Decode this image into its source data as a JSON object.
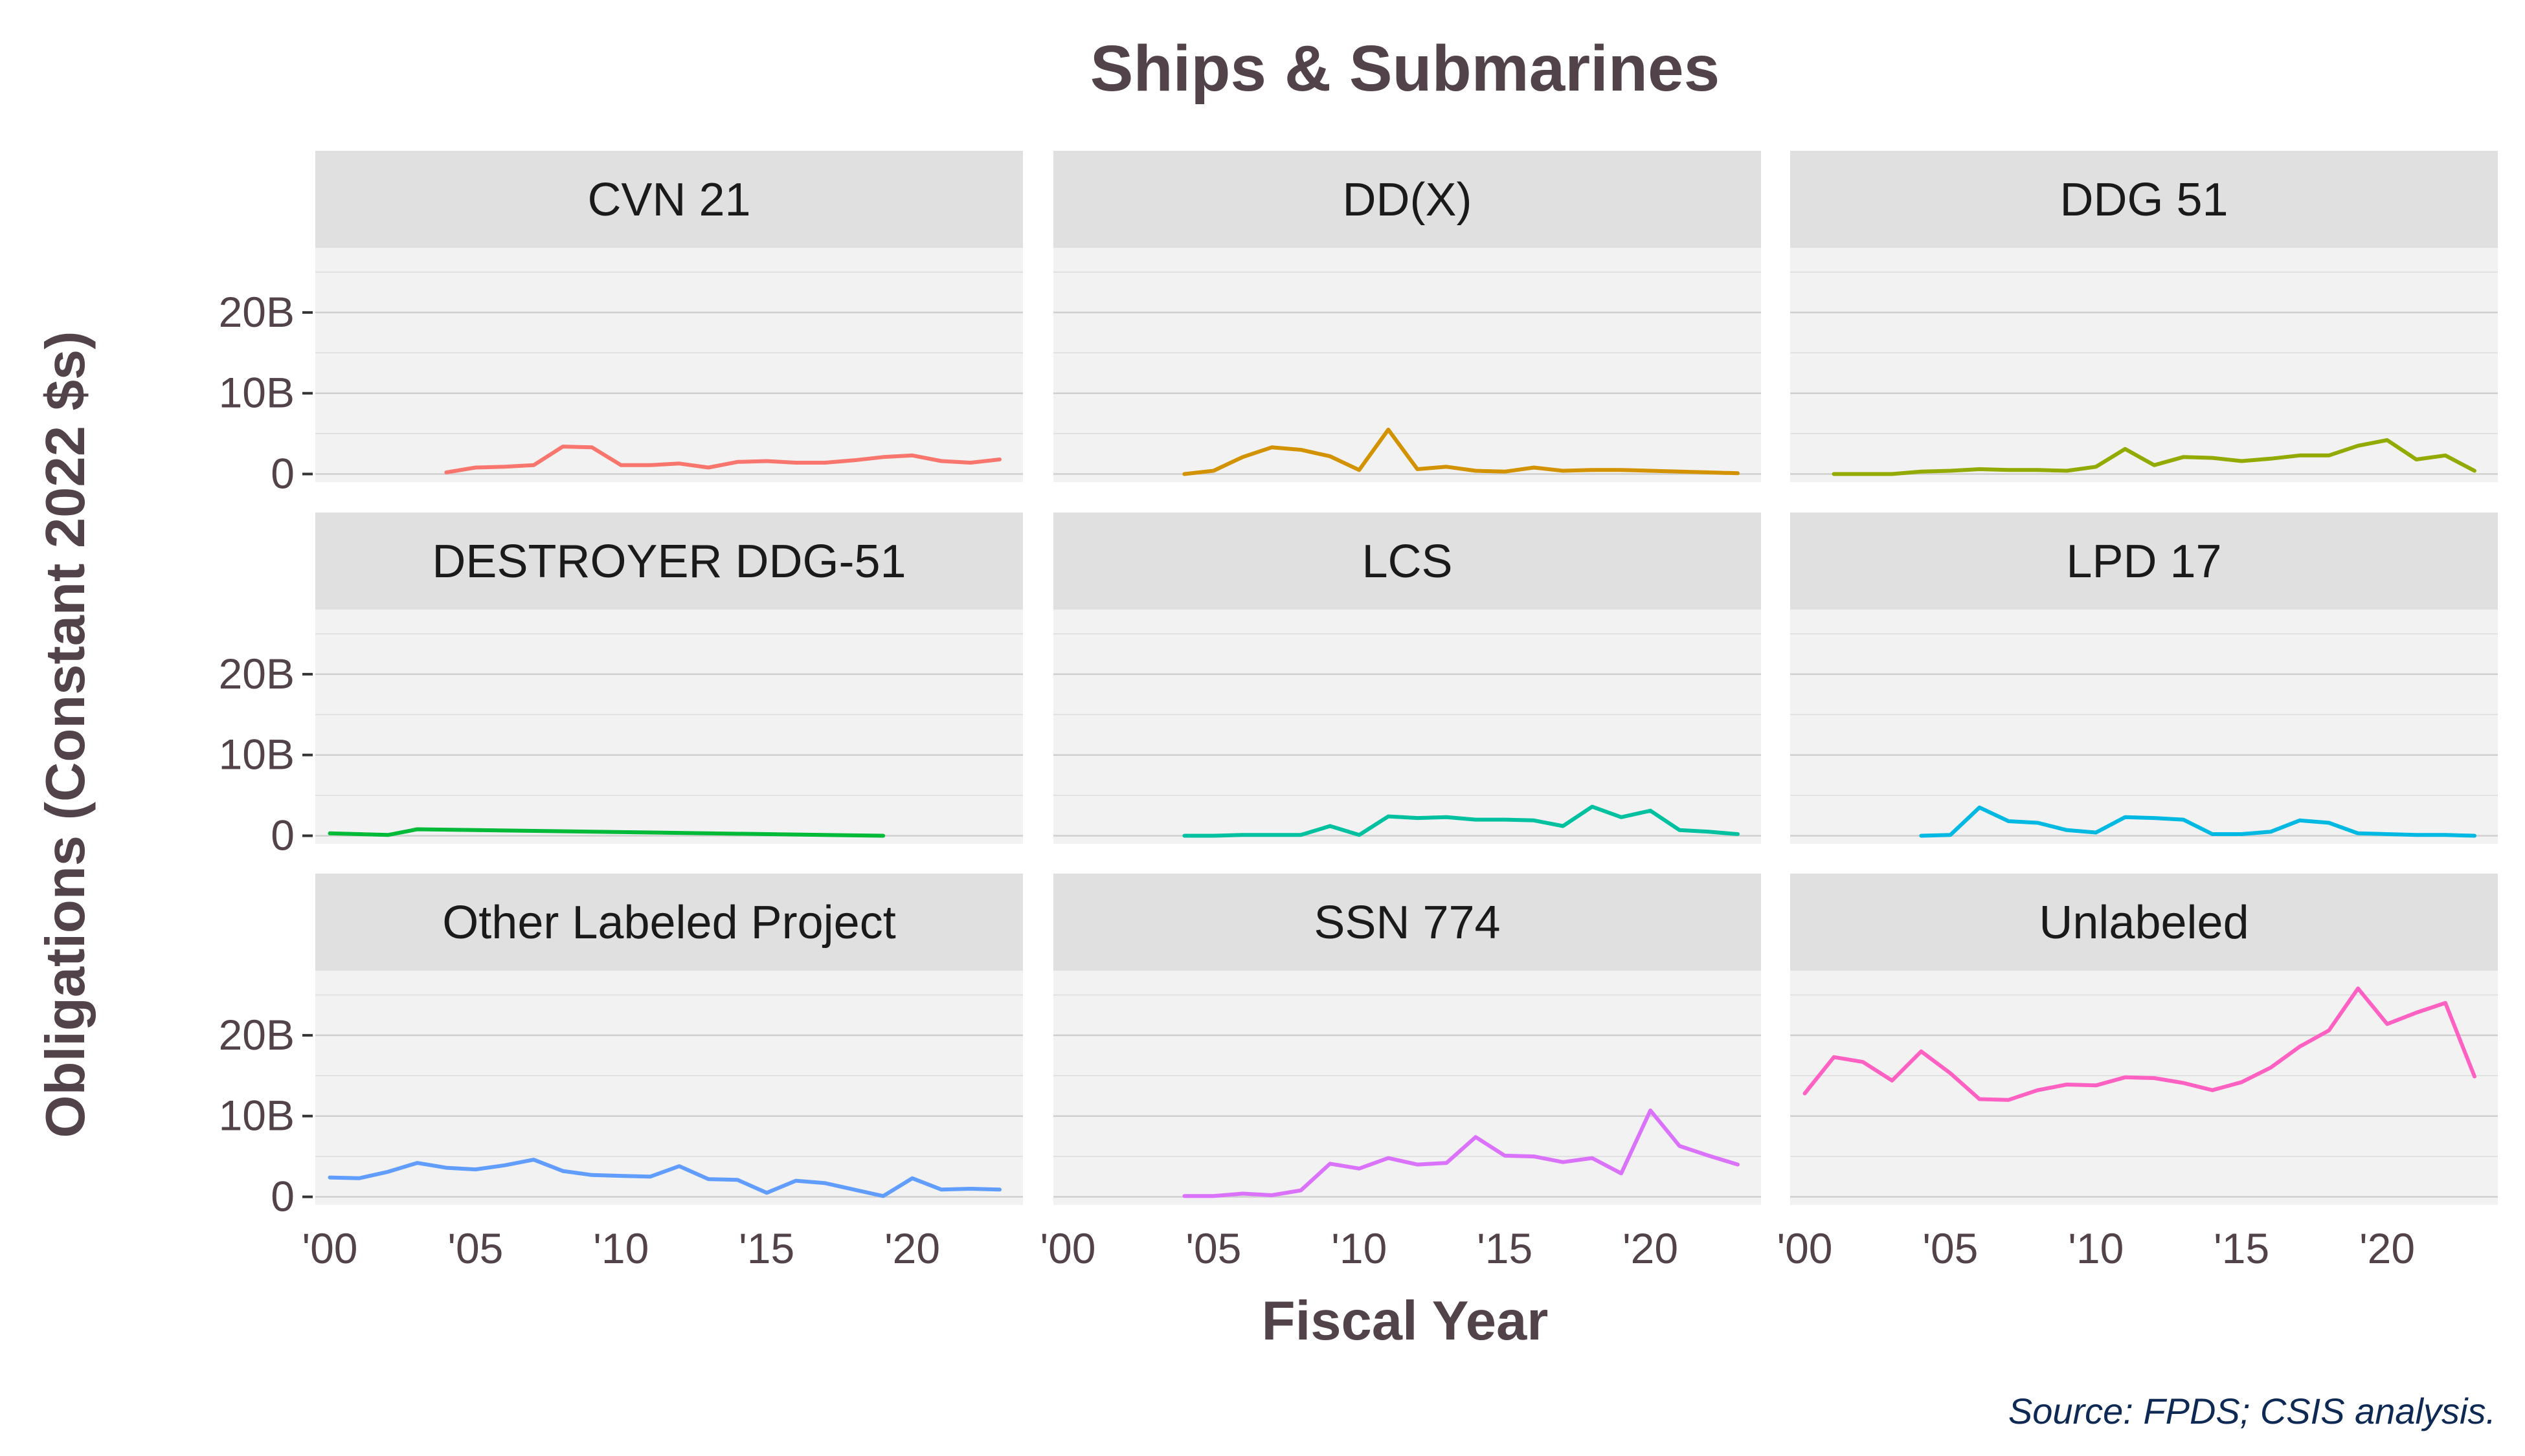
{
  "chart_data": {
    "type": "line",
    "title": "Ships & Submarines",
    "xlabel": "Fiscal Year",
    "ylabel": "Obligations (Constant 2022 $s)",
    "source": "Source: FPDS; CSIS analysis.",
    "x_ticks": [
      "'00",
      "'05",
      "'10",
      "'15",
      "'20"
    ],
    "x_tick_values": [
      2000,
      2005,
      2010,
      2015,
      2020
    ],
    "y_ticks": [
      "0",
      "10B",
      "20B"
    ],
    "y_tick_values": [
      0,
      10,
      20
    ],
    "y_unit": "billions",
    "xlim": [
      1999.5,
      2023.8
    ],
    "ylim": [
      -1,
      28
    ],
    "grid": true,
    "facets": [
      {
        "name": "CVN 21",
        "color": "#F8766D",
        "x": [
          2004,
          2005,
          2006,
          2007,
          2008,
          2009,
          2010,
          2011,
          2012,
          2013,
          2014,
          2015,
          2016,
          2017,
          2018,
          2019,
          2020,
          2021,
          2022,
          2023
        ],
        "y": [
          0.2,
          0.8,
          0.9,
          1.1,
          3.4,
          3.3,
          1.1,
          1.1,
          1.3,
          0.8,
          1.5,
          1.6,
          1.4,
          1.4,
          1.7,
          2.1,
          2.3,
          1.6,
          1.4,
          1.8
        ]
      },
      {
        "name": "DD(X)",
        "color": "#D39200",
        "x": [
          2004,
          2005,
          2006,
          2007,
          2008,
          2009,
          2010,
          2011,
          2012,
          2013,
          2014,
          2015,
          2016,
          2017,
          2018,
          2019,
          2020,
          2021,
          2022,
          2023
        ],
        "y": [
          0.0,
          0.4,
          2.1,
          3.3,
          3.0,
          2.2,
          0.5,
          5.5,
          0.6,
          0.9,
          0.4,
          0.3,
          0.8,
          0.4,
          0.5,
          0.5,
          0.4,
          0.3,
          0.2,
          0.1
        ]
      },
      {
        "name": "DDG 51",
        "color": "#93AA00",
        "x": [
          2001,
          2002,
          2003,
          2004,
          2005,
          2006,
          2007,
          2008,
          2009,
          2010,
          2011,
          2012,
          2013,
          2014,
          2015,
          2016,
          2017,
          2018,
          2019,
          2020,
          2021,
          2022,
          2023
        ],
        "y": [
          0.0,
          0.0,
          0.0,
          0.3,
          0.4,
          0.6,
          0.5,
          0.5,
          0.4,
          0.9,
          3.1,
          1.1,
          2.1,
          2.0,
          1.6,
          1.9,
          2.3,
          2.3,
          3.5,
          4.2,
          1.8,
          2.3,
          0.4
        ]
      },
      {
        "name": "DESTROYER DDG-51",
        "color": "#00BA38",
        "x": [
          2000,
          2001,
          2002,
          2003,
          2019
        ],
        "y": [
          0.3,
          0.2,
          0.1,
          0.8,
          0.0
        ]
      },
      {
        "name": "LCS",
        "color": "#00C19F",
        "x": [
          2004,
          2005,
          2006,
          2007,
          2008,
          2009,
          2010,
          2011,
          2012,
          2013,
          2014,
          2015,
          2016,
          2017,
          2018,
          2019,
          2020,
          2021,
          2022,
          2023
        ],
        "y": [
          0.0,
          0.0,
          0.1,
          0.1,
          0.1,
          1.2,
          0.1,
          2.4,
          2.2,
          2.3,
          2.0,
          2.0,
          1.9,
          1.2,
          3.6,
          2.3,
          3.1,
          0.7,
          0.5,
          0.2
        ]
      },
      {
        "name": "LPD 17",
        "color": "#00B9E3",
        "x": [
          2004,
          2005,
          2006,
          2007,
          2008,
          2009,
          2010,
          2011,
          2012,
          2013,
          2014,
          2015,
          2016,
          2017,
          2018,
          2019,
          2020,
          2021,
          2022,
          2023
        ],
        "y": [
          0.0,
          0.1,
          3.5,
          1.8,
          1.6,
          0.7,
          0.4,
          2.3,
          2.2,
          2.0,
          0.2,
          0.2,
          0.5,
          1.9,
          1.6,
          0.3,
          0.2,
          0.1,
          0.1,
          0.0
        ]
      },
      {
        "name": "Other Labeled Project",
        "color": "#619CFF",
        "x": [
          2000,
          2001,
          2002,
          2003,
          2004,
          2005,
          2006,
          2007,
          2008,
          2009,
          2010,
          2011,
          2012,
          2013,
          2014,
          2015,
          2016,
          2017,
          2018,
          2019,
          2020,
          2021,
          2022,
          2023
        ],
        "y": [
          2.4,
          2.3,
          3.1,
          4.2,
          3.6,
          3.4,
          3.9,
          4.6,
          3.2,
          2.7,
          2.6,
          2.5,
          3.8,
          2.2,
          2.1,
          0.5,
          2.0,
          1.7,
          0.9,
          0.1,
          2.3,
          0.9,
          1.0,
          0.9
        ]
      },
      {
        "name": "SSN 774",
        "color": "#DB72FB",
        "x": [
          2004,
          2005,
          2006,
          2007,
          2008,
          2009,
          2010,
          2011,
          2012,
          2013,
          2014,
          2015,
          2016,
          2017,
          2018,
          2019,
          2020,
          2021,
          2022,
          2023
        ],
        "y": [
          0.1,
          0.1,
          0.4,
          0.2,
          0.8,
          4.1,
          3.5,
          4.8,
          4.0,
          4.2,
          7.4,
          5.1,
          5.0,
          4.3,
          4.8,
          2.9,
          10.7,
          6.3,
          5.1,
          4.0
        ]
      },
      {
        "name": "Unlabeled",
        "color": "#FF61C3",
        "x": [
          2000,
          2001,
          2002,
          2003,
          2004,
          2005,
          2006,
          2007,
          2008,
          2009,
          2010,
          2011,
          2012,
          2013,
          2014,
          2015,
          2016,
          2017,
          2018,
          2019,
          2020,
          2021,
          2022,
          2023
        ],
        "y": [
          12.8,
          17.3,
          16.7,
          14.4,
          18.0,
          15.3,
          12.1,
          12.0,
          13.2,
          13.9,
          13.8,
          14.8,
          14.7,
          14.1,
          13.2,
          14.2,
          16.0,
          18.6,
          20.6,
          25.8,
          21.4,
          22.8,
          24.0,
          14.9
        ]
      }
    ]
  }
}
